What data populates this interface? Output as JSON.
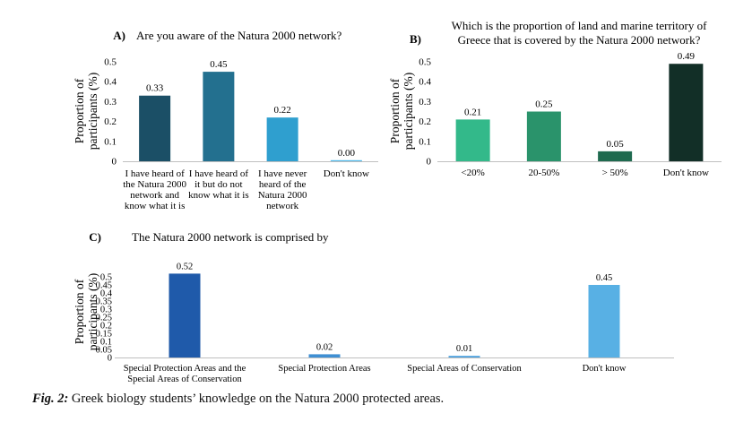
{
  "chart_data": [
    {
      "type": "bar",
      "panel_label": "A)",
      "title": "Are you aware of the Natura 2000 network?",
      "ylabel": "Proportion of participants (%)",
      "ylabel_lines": [
        "Proportion of",
        "participants (%)"
      ],
      "ylim": [
        0,
        0.5
      ],
      "yticks": [
        "0",
        "0.1",
        "0.2",
        "0.3",
        "0.4",
        "0.5"
      ],
      "categories": [
        "I have heard of the Natura 2000 network and know what it is",
        "I have heard of it but do not know what it is",
        "I have never heard of the Natura 2000 network",
        "Don't know"
      ],
      "category_lines": [
        [
          "I have heard of",
          "the Natura 2000",
          "network and",
          "know what it is"
        ],
        [
          "I have heard of",
          "it but do not",
          "know what it is"
        ],
        [
          "I have never",
          "heard of the",
          "Natura 2000",
          "network"
        ],
        [
          "Don't know"
        ]
      ],
      "values": [
        0.33,
        0.45,
        0.22,
        0.0
      ],
      "value_labels": [
        "0.33",
        "0.45",
        "0.22",
        "0.00"
      ],
      "colors": [
        "#1b4f66",
        "#23708f",
        "#2f9fcf",
        "#4fb8ea"
      ],
      "grid": false
    },
    {
      "type": "bar",
      "panel_label": "B)",
      "title": "Which is the proportion of land and marine territory of Greece that is covered by the Natura 2000 network?",
      "title_lines": [
        "Which is the proportion of land and marine territory of",
        "Greece that is covered by the Natura 2000 network?"
      ],
      "ylabel": "Proportion of participants (%)",
      "ylabel_lines": [
        "Proportion of",
        "participants (%)"
      ],
      "ylim": [
        0,
        0.5
      ],
      "yticks": [
        "0",
        "0.1",
        "0.2",
        "0.3",
        "0.4",
        "0.5"
      ],
      "categories": [
        "<20%",
        "20-50%",
        "> 50%",
        "Don't know"
      ],
      "category_lines": [
        [
          "<20%"
        ],
        [
          "20-50%"
        ],
        [
          "> 50%"
        ],
        [
          "Don't know"
        ]
      ],
      "values": [
        0.21,
        0.25,
        0.05,
        0.49
      ],
      "value_labels": [
        "0.21",
        "0.25",
        "0.05",
        "0.49"
      ],
      "colors": [
        "#33b98a",
        "#2a936b",
        "#1f6a4f",
        "#122f27"
      ],
      "grid": false
    },
    {
      "type": "bar",
      "panel_label": "C)",
      "title": "The Natura 2000 network is comprised by",
      "ylabel": "Proportion of participants (%)",
      "ylabel_lines": [
        "Proportion of",
        "participants (%)"
      ],
      "ylim": [
        0,
        0.5
      ],
      "yticks": [
        "0",
        "0.05",
        "0.1",
        "0.15",
        "0.2",
        "0.25",
        "0.3",
        "0.35",
        "0.4",
        "0.45",
        "0.5"
      ],
      "categories": [
        "Special Protection Areas and the Special Areas of Conservation",
        "Special Protection Areas",
        "Special Areas of Conservation",
        "Don't know"
      ],
      "category_lines": [
        [
          "Special Protection Areas and the",
          "Special Areas of Conservation"
        ],
        [
          "Special Protection Areas"
        ],
        [
          "Special Areas of Conservation"
        ],
        [
          "Don't know"
        ]
      ],
      "values": [
        0.52,
        0.02,
        0.01,
        0.45
      ],
      "value_labels": [
        "0.52",
        "0.02",
        "0.01",
        "0.45"
      ],
      "colors": [
        "#1f5aaa",
        "#3f8fd3",
        "#4aa0de",
        "#58b0e4"
      ],
      "grid": false
    }
  ],
  "caption": {
    "label": "Fig. 2:",
    "text": " Greek biology students’ knowledge on the Natura 2000 protected areas."
  }
}
